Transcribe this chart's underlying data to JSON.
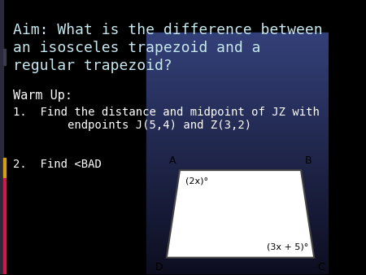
{
  "aim_text_line1": "Aim: What is the difference between",
  "aim_text_line2": "an isosceles trapezoid and a",
  "aim_text_line3": "regular trapezoid?",
  "warmup_label": "Warm Up:",
  "item1_line1": "1.  Find the distance and midpoint of JZ with",
  "item1_line2": "        endpoints J(5,4) and Z(3,2)",
  "item2": "2.  Find <BAD",
  "aim_text_color": "#c8e8f0",
  "body_text_color": "#ffffff",
  "trap_label_A": "A",
  "trap_label_B": "B",
  "trap_label_C": "C",
  "trap_label_D": "D",
  "trap_angle1": "(2x)°",
  "trap_angle2": "(3x + 5)°",
  "fig_width": 4.5,
  "fig_height": 3.38,
  "left_bar_dark_color": "#2a2a3a",
  "left_bar_gold_color": "#d4a010",
  "left_bar_red_color": "#cc1a4a"
}
